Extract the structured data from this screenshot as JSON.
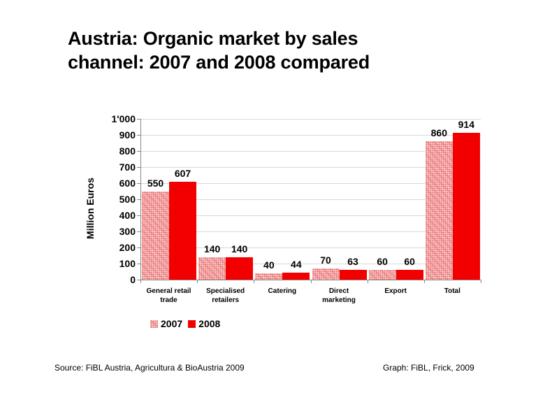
{
  "title_line1": "Austria: Organic market by sales",
  "title_line2": "channel: 2007 and 2008 compared",
  "source": "Source: FiBL Austria, Agricultura & BioAustria 2009",
  "graph_credit": "Graph:  FiBL, Frick, 2009",
  "colors": {
    "series_2007": "#f7c8c8",
    "series_2008": "#f20000"
  },
  "chart_data": {
    "type": "bar",
    "title": "Austria: Organic market by sales channel: 2007 and 2008 compared",
    "xlabel": "",
    "ylabel": "Million Euros",
    "ylim": [
      0,
      1000
    ],
    "yticks": [
      "0",
      "100",
      "200",
      "300",
      "400",
      "500",
      "600",
      "700",
      "800",
      "900",
      "1'000"
    ],
    "grid": true,
    "legend_position": "bottom-left",
    "categories": [
      "General retail trade",
      "Specialised retailers",
      "Catering",
      "Direct marketing",
      "Export",
      "Total"
    ],
    "category_lines": [
      [
        "General retail",
        "trade"
      ],
      [
        "Specialised",
        "retailers"
      ],
      [
        "Catering",
        ""
      ],
      [
        "Direct",
        "marketing"
      ],
      [
        "Export",
        ""
      ],
      [
        "Total",
        ""
      ]
    ],
    "series": [
      {
        "name": "2007",
        "values": [
          550,
          140,
          40,
          70,
          60,
          860
        ]
      },
      {
        "name": "2008",
        "values": [
          607,
          140,
          44,
          63,
          60,
          914
        ]
      }
    ]
  }
}
